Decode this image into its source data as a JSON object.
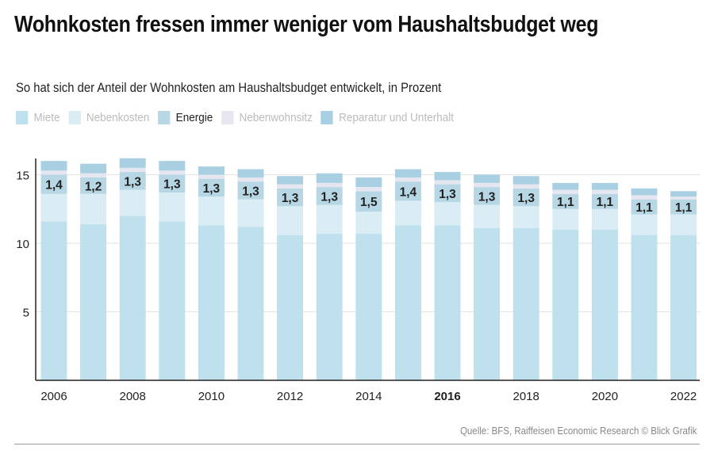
{
  "chart_data": {
    "type": "bar",
    "stacked": true,
    "title": "Wohnkosten fressen immer weniger vom Haushaltsbudget weg",
    "subtitle": "So hat sich der Anteil der Wohnkosten am Haushaltsbudget entwickelt, in Prozent",
    "source": "Quelle: BFS, Raiffeisen Economic Research © Blick Grafik",
    "categories": [
      "2006",
      "2007",
      "2008",
      "2009",
      "2010",
      "2011",
      "2012",
      "2013",
      "2014",
      "2015",
      "2016",
      "2017",
      "2018",
      "2019",
      "2020",
      "2021",
      "2022"
    ],
    "x_tick_labels": [
      "2006",
      "2008",
      "2010",
      "2012",
      "2014",
      "2016",
      "2018",
      "2020",
      "2022"
    ],
    "highlighted_tick": "2016",
    "ylim": [
      0,
      16.5
    ],
    "y_ticks": [
      5,
      10,
      15
    ],
    "grid": true,
    "legend_position": "top-left",
    "series": [
      {
        "name": "Miete",
        "color": "#bfe0ed",
        "values": [
          11.6,
          11.4,
          12.0,
          11.6,
          11.3,
          11.2,
          10.6,
          10.7,
          10.7,
          11.3,
          11.3,
          11.1,
          11.1,
          11.0,
          11.0,
          10.6,
          10.6
        ]
      },
      {
        "name": "Nebenkosten",
        "color": "#daedf5",
        "values": [
          2.0,
          2.2,
          1.9,
          2.1,
          2.1,
          2.0,
          2.1,
          2.1,
          1.6,
          1.8,
          1.7,
          1.7,
          1.6,
          1.5,
          1.5,
          1.5,
          1.5
        ]
      },
      {
        "name": "Energie",
        "color": "#b7d7e5",
        "values": [
          1.4,
          1.2,
          1.3,
          1.3,
          1.3,
          1.3,
          1.3,
          1.3,
          1.5,
          1.4,
          1.3,
          1.3,
          1.3,
          1.1,
          1.1,
          1.1,
          1.1
        ],
        "labels": [
          "1,4",
          "1,2",
          "1,3",
          "1,3",
          "1,3",
          "1,3",
          "1,3",
          "1,3",
          "1,5",
          "1,4",
          "1,3",
          "1,3",
          "1,3",
          "1,1",
          "1,1",
          "1,1",
          "1,1"
        ]
      },
      {
        "name": "Nebenwohnsitz",
        "color": "#e6e6f0",
        "values": [
          0.3,
          0.3,
          0.3,
          0.3,
          0.3,
          0.3,
          0.3,
          0.3,
          0.3,
          0.3,
          0.3,
          0.3,
          0.3,
          0.3,
          0.3,
          0.3,
          0.2
        ]
      },
      {
        "name": "Reparatur und Unterhalt",
        "color": "#a9d0e2",
        "values": [
          0.7,
          0.7,
          0.7,
          0.7,
          0.6,
          0.6,
          0.6,
          0.7,
          0.7,
          0.6,
          0.6,
          0.6,
          0.6,
          0.5,
          0.5,
          0.5,
          0.4
        ]
      }
    ],
    "legend_active": "Energie"
  }
}
